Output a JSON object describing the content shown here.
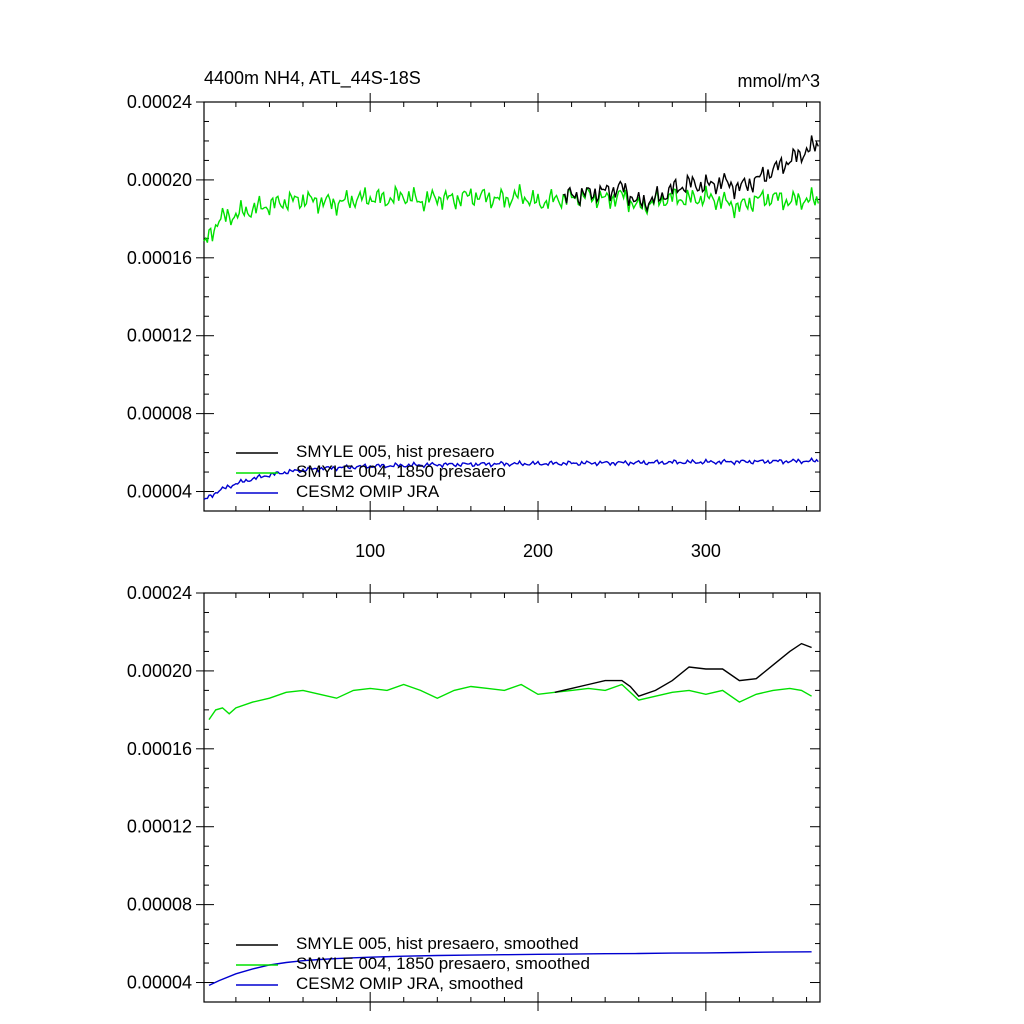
{
  "figure": {
    "title_left": "4400m NH4, ATL_44S-18S",
    "title_right": "mmol/m^3"
  },
  "chart_data": [
    {
      "type": "line",
      "title": "4400m NH4, ATL_44S-18S",
      "units": "mmol/m^3",
      "xlim": [
        1,
        368
      ],
      "ylim": [
        3e-05,
        0.00024
      ],
      "xticks": [
        100,
        200,
        300
      ],
      "yticks": [
        4e-05,
        8e-05,
        0.00012,
        0.00016,
        0.0002,
        0.00024
      ],
      "ytick_labels": [
        "0.00004",
        "0.00008",
        "0.00012",
        "0.00016",
        "0.00020",
        "0.00024"
      ],
      "xtick_labels": [
        "100",
        "200",
        "300"
      ],
      "legend_position": "bottom-left",
      "series": [
        {
          "name": "SMYLE 005, hist presaero",
          "color": "#000000",
          "points": [
            [
              1,
              0.000166
            ],
            [
              10,
              0.00018
            ],
            [
              20,
              0.000182
            ],
            [
              30,
              0.000185
            ],
            [
              40,
              0.000187
            ],
            [
              50,
              0.000189
            ],
            [
              60,
              0.00019
            ],
            [
              70,
              0.000189
            ],
            [
              80,
              0.000188
            ],
            [
              90,
              0.00019
            ],
            [
              100,
              0.000191
            ],
            [
              110,
              0.00019
            ],
            [
              120,
              0.000192
            ],
            [
              130,
              0.000189
            ],
            [
              140,
              0.000191
            ],
            [
              150,
              0.00019
            ],
            [
              160,
              0.000192
            ],
            [
              170,
              0.000191
            ],
            [
              180,
              0.00019
            ],
            [
              190,
              0.000192
            ],
            [
              200,
              0.000188
            ],
            [
              210,
              0.00019
            ],
            [
              220,
              0.000192
            ],
            [
              230,
              0.000193
            ],
            [
              240,
              0.000194
            ],
            [
              250,
              0.000196
            ],
            [
              260,
              0.000188
            ],
            [
              270,
              0.00019
            ],
            [
              280,
              0.000195
            ],
            [
              290,
              0.000198
            ],
            [
              300,
              0.000197
            ],
            [
              310,
              0.000199
            ],
            [
              320,
              0.000196
            ],
            [
              330,
              0.0002
            ],
            [
              340,
              0.000205
            ],
            [
              350,
              0.00021
            ],
            [
              360,
              0.000215
            ],
            [
              367,
              0.000218
            ]
          ]
        },
        {
          "name": "SMYLE 004, 1850 presaero",
          "color": "#00e000",
          "points": [
            [
              1,
              0.000166
            ],
            [
              10,
              0.00018
            ],
            [
              20,
              0.000182
            ],
            [
              30,
              0.000185
            ],
            [
              40,
              0.000187
            ],
            [
              50,
              0.000189
            ],
            [
              60,
              0.00019
            ],
            [
              70,
              0.000189
            ],
            [
              80,
              0.000188
            ],
            [
              90,
              0.00019
            ],
            [
              100,
              0.000191
            ],
            [
              110,
              0.00019
            ],
            [
              120,
              0.000192
            ],
            [
              130,
              0.000189
            ],
            [
              140,
              0.000191
            ],
            [
              150,
              0.00019
            ],
            [
              160,
              0.000192
            ],
            [
              170,
              0.000191
            ],
            [
              180,
              0.00019
            ],
            [
              190,
              0.000192
            ],
            [
              200,
              0.000188
            ],
            [
              210,
              0.00019
            ],
            [
              220,
              0.000191
            ],
            [
              230,
              0.000192
            ],
            [
              240,
              0.00019
            ],
            [
              250,
              0.000192
            ],
            [
              260,
              0.000186
            ],
            [
              270,
              0.000189
            ],
            [
              280,
              0.000191
            ],
            [
              290,
              0.00019
            ],
            [
              300,
              0.000191
            ],
            [
              310,
              0.000189
            ],
            [
              320,
              0.000186
            ],
            [
              330,
              0.00019
            ],
            [
              340,
              0.000191
            ],
            [
              350,
              0.000189
            ],
            [
              360,
              0.00019
            ],
            [
              367,
              0.000189
            ]
          ]
        },
        {
          "name": "CESM2 OMIP JRA",
          "color": "#0000d0",
          "points": [
            [
              1,
              3.55e-05
            ],
            [
              10,
              4.05e-05
            ],
            [
              20,
              4.4e-05
            ],
            [
              30,
              4.65e-05
            ],
            [
              40,
              4.85e-05
            ],
            [
              50,
              5e-05
            ],
            [
              60,
              5.1e-05
            ],
            [
              70,
              5.18e-05
            ],
            [
              80,
              5.22e-05
            ],
            [
              90,
              5.26e-05
            ],
            [
              100,
              5.3e-05
            ],
            [
              120,
              5.34e-05
            ],
            [
              140,
              5.38e-05
            ],
            [
              160,
              5.4e-05
            ],
            [
              180,
              5.42e-05
            ],
            [
              200,
              5.43e-05
            ],
            [
              220,
              5.45e-05
            ],
            [
              240,
              5.47e-05
            ],
            [
              260,
              5.48e-05
            ],
            [
              280,
              5.5e-05
            ],
            [
              300,
              5.51e-05
            ],
            [
              320,
              5.53e-05
            ],
            [
              340,
              5.55e-05
            ],
            [
              360,
              5.56e-05
            ],
            [
              367,
              5.57e-05
            ]
          ]
        }
      ]
    },
    {
      "type": "line",
      "title": "",
      "xlim": [
        1,
        368
      ],
      "ylim": [
        3e-05,
        0.00024
      ],
      "xticks": [
        100,
        200,
        300
      ],
      "yticks": [
        4e-05,
        8e-05,
        0.00012,
        0.00016,
        0.0002,
        0.00024
      ],
      "ytick_labels": [
        "0.00004",
        "0.00008",
        "0.00012",
        "0.00016",
        "0.00020",
        "0.00024"
      ],
      "legend_position": "bottom-left",
      "series": [
        {
          "name": "SMYLE 005, hist presaero, smoothed",
          "color": "#000000",
          "points": [
            [
              4,
              0.000175
            ],
            [
              8,
              0.00018
            ],
            [
              12,
              0.000181
            ],
            [
              16,
              0.000178
            ],
            [
              20,
              0.000181
            ],
            [
              30,
              0.000184
            ],
            [
              40,
              0.000186
            ],
            [
              50,
              0.000189
            ],
            [
              60,
              0.00019
            ],
            [
              70,
              0.000188
            ],
            [
              80,
              0.000186
            ],
            [
              90,
              0.00019
            ],
            [
              100,
              0.000191
            ],
            [
              110,
              0.00019
            ],
            [
              120,
              0.000193
            ],
            [
              130,
              0.00019
            ],
            [
              140,
              0.000186
            ],
            [
              150,
              0.00019
            ],
            [
              160,
              0.000192
            ],
            [
              170,
              0.000191
            ],
            [
              180,
              0.00019
            ],
            [
              190,
              0.000193
            ],
            [
              200,
              0.000188
            ],
            [
              210,
              0.000189
            ],
            [
              220,
              0.000191
            ],
            [
              230,
              0.000193
            ],
            [
              240,
              0.000195
            ],
            [
              250,
              0.000195
            ],
            [
              255,
              0.000192
            ],
            [
              260,
              0.000187
            ],
            [
              270,
              0.00019
            ],
            [
              280,
              0.000195
            ],
            [
              290,
              0.000202
            ],
            [
              300,
              0.000201
            ],
            [
              310,
              0.000201
            ],
            [
              320,
              0.000195
            ],
            [
              330,
              0.000196
            ],
            [
              340,
              0.000203
            ],
            [
              350,
              0.00021
            ],
            [
              357,
              0.000214
            ],
            [
              363,
              0.000212
            ]
          ]
        },
        {
          "name": "SMYLE 004, 1850 presaero, smoothed",
          "color": "#00e000",
          "points": [
            [
              4,
              0.000175
            ],
            [
              8,
              0.00018
            ],
            [
              12,
              0.000181
            ],
            [
              16,
              0.000178
            ],
            [
              20,
              0.000181
            ],
            [
              30,
              0.000184
            ],
            [
              40,
              0.000186
            ],
            [
              50,
              0.000189
            ],
            [
              60,
              0.00019
            ],
            [
              70,
              0.000188
            ],
            [
              80,
              0.000186
            ],
            [
              90,
              0.00019
            ],
            [
              100,
              0.000191
            ],
            [
              110,
              0.00019
            ],
            [
              120,
              0.000193
            ],
            [
              130,
              0.00019
            ],
            [
              140,
              0.000186
            ],
            [
              150,
              0.00019
            ],
            [
              160,
              0.000192
            ],
            [
              170,
              0.000191
            ],
            [
              180,
              0.00019
            ],
            [
              190,
              0.000193
            ],
            [
              200,
              0.000188
            ],
            [
              210,
              0.000189
            ],
            [
              220,
              0.00019
            ],
            [
              230,
              0.000191
            ],
            [
              240,
              0.00019
            ],
            [
              250,
              0.000193
            ],
            [
              260,
              0.000185
            ],
            [
              270,
              0.000187
            ],
            [
              280,
              0.000189
            ],
            [
              290,
              0.00019
            ],
            [
              300,
              0.000188
            ],
            [
              310,
              0.00019
            ],
            [
              320,
              0.000184
            ],
            [
              330,
              0.000188
            ],
            [
              340,
              0.00019
            ],
            [
              350,
              0.000191
            ],
            [
              357,
              0.00019
            ],
            [
              363,
              0.000187
            ]
          ]
        },
        {
          "name": "CESM2 OMIP JRA, smoothed",
          "color": "#0000d0",
          "points": [
            [
              4,
              3.85e-05
            ],
            [
              10,
              4.1e-05
            ],
            [
              20,
              4.45e-05
            ],
            [
              30,
              4.7e-05
            ],
            [
              40,
              4.9e-05
            ],
            [
              50,
              5.03e-05
            ],
            [
              60,
              5.12e-05
            ],
            [
              70,
              5.18e-05
            ],
            [
              80,
              5.23e-05
            ],
            [
              90,
              5.27e-05
            ],
            [
              100,
              5.3e-05
            ],
            [
              120,
              5.35e-05
            ],
            [
              140,
              5.39e-05
            ],
            [
              160,
              5.41e-05
            ],
            [
              180,
              5.43e-05
            ],
            [
              200,
              5.45e-05
            ],
            [
              220,
              5.46e-05
            ],
            [
              240,
              5.48e-05
            ],
            [
              260,
              5.49e-05
            ],
            [
              280,
              5.51e-05
            ],
            [
              300,
              5.52e-05
            ],
            [
              320,
              5.54e-05
            ],
            [
              340,
              5.56e-05
            ],
            [
              363,
              5.58e-05
            ]
          ]
        }
      ]
    }
  ]
}
